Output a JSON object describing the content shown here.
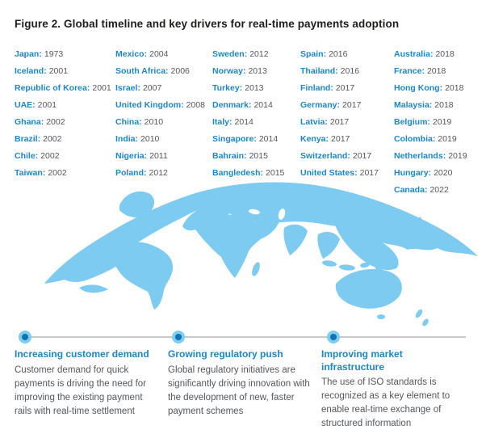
{
  "figure_title": "Figure 2. Global timeline and key drivers for real-time payments adoption",
  "adoption_columns": [
    [
      {
        "name": "Japan",
        "year": "1973"
      },
      {
        "name": "Iceland",
        "year": "2001"
      },
      {
        "name": "Republic of Korea",
        "year": "2001"
      },
      {
        "name": "UAE",
        "year": "2001"
      },
      {
        "name": "Ghana",
        "year": "2002"
      },
      {
        "name": "Brazil",
        "year": "2002"
      },
      {
        "name": "Chile",
        "year": "2002"
      },
      {
        "name": "Taiwan",
        "year": "2002"
      }
    ],
    [
      {
        "name": "Mexico",
        "year": "2004"
      },
      {
        "name": "South Africa",
        "year": "2006"
      },
      {
        "name": "Israel",
        "year": "2007"
      },
      {
        "name": "United Kingdom",
        "year": "2008"
      },
      {
        "name": "China",
        "year": "2010"
      },
      {
        "name": "India",
        "year": "2010"
      },
      {
        "name": "Nigeria",
        "year": "2011"
      },
      {
        "name": "Poland",
        "year": "2012"
      }
    ],
    [
      {
        "name": "Sweden",
        "year": "2012"
      },
      {
        "name": "Norway",
        "year": "2013"
      },
      {
        "name": "Turkey",
        "year": "2013"
      },
      {
        "name": "Denmark",
        "year": "2014"
      },
      {
        "name": "Italy",
        "year": "2014"
      },
      {
        "name": "Singapore",
        "year": "2014"
      },
      {
        "name": "Bahrain",
        "year": "2015"
      },
      {
        "name": "Bangledesh",
        "year": "2015"
      }
    ],
    [
      {
        "name": "Spain",
        "year": "2016"
      },
      {
        "name": "Thailand",
        "year": "2016"
      },
      {
        "name": "Finland",
        "year": "2017"
      },
      {
        "name": "Germany",
        "year": "2017"
      },
      {
        "name": "Latvia",
        "year": "2017"
      },
      {
        "name": "Kenya",
        "year": "2017"
      },
      {
        "name": "Switzerland",
        "year": "2017"
      },
      {
        "name": "United States",
        "year": "2017"
      }
    ],
    [
      {
        "name": "Australia",
        "year": "2018"
      },
      {
        "name": "France",
        "year": "2018"
      },
      {
        "name": "Hong Kong",
        "year": "2018"
      },
      {
        "name": "Malaysia",
        "year": "2018"
      },
      {
        "name": "Belgium",
        "year": "2019"
      },
      {
        "name": "Colombia",
        "year": "2019"
      },
      {
        "name": "Netherlands",
        "year": "2019"
      },
      {
        "name": "Hungary",
        "year": "2020"
      },
      {
        "name": "Canada",
        "year": "2022"
      }
    ]
  ],
  "drivers": [
    {
      "heading": "Increasing customer demand",
      "body": "Customer demand for quick payments is driving the need for improving the existing payment rails with real-time settlement"
    },
    {
      "heading": "Growing regulatory push",
      "body": "Global regulatory initiatives are significantly driving innovation with the development of new, faster payment schemes"
    },
    {
      "heading": "Improving market infrastructure",
      "body": "The use of ISO standards is recognized as a key element to enable real-time exchange of structured information"
    }
  ],
  "map": {
    "description": "world-map-globe-illustration"
  },
  "colors": {
    "accent_blue": "#1b87c9",
    "map_blue": "#7dcbf0",
    "year_gray": "#54565b",
    "body_gray": "#53565a",
    "timeline_line_gray": "#c9c9c9",
    "dot_inner_blue": "#1173b4",
    "dot_halo_blue": "#7ecdf0",
    "title_dark": "#1d1d1b"
  }
}
